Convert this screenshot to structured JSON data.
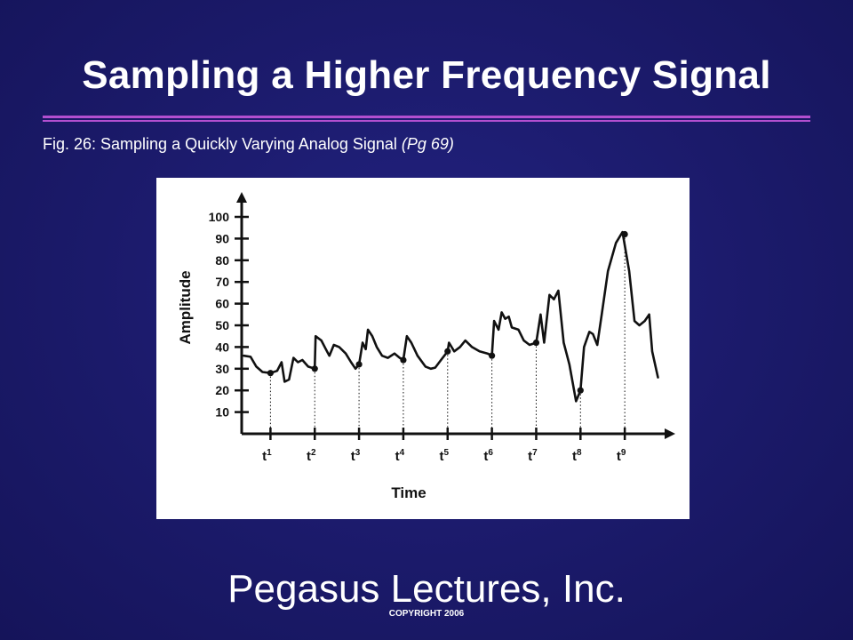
{
  "slide": {
    "title": "Sampling a Higher Frequency Signal",
    "caption_main": "Fig. 26: Sampling a Quickly Varying Analog Signal ",
    "caption_ref": "(Pg 69)",
    "brand": "Pegasus Lectures, Inc.",
    "copyright": "COPYRIGHT 2006"
  },
  "colors": {
    "background": "#1b1a6a",
    "rule": "#b24fd0",
    "text": "#ffffff",
    "plot_ink": "#111111"
  },
  "chart_data": {
    "type": "line",
    "xlabel": "Time",
    "ylabel": "Amplitude",
    "ylim": [
      0,
      100
    ],
    "y_ticks": [
      10,
      20,
      30,
      40,
      50,
      60,
      70,
      80,
      90,
      100
    ],
    "sample_labels": [
      {
        "base": "t",
        "sup": "1"
      },
      {
        "base": "t",
        "sup": "2"
      },
      {
        "base": "t",
        "sup": "3"
      },
      {
        "base": "t",
        "sup": "4"
      },
      {
        "base": "t",
        "sup": "5"
      },
      {
        "base": "t",
        "sup": "6"
      },
      {
        "base": "t",
        "sup": "7"
      },
      {
        "base": "t",
        "sup": "8"
      },
      {
        "base": "t",
        "sup": "9"
      }
    ],
    "sample_times": [
      1,
      2,
      3,
      4,
      5,
      6,
      7,
      8,
      9
    ],
    "xlim": [
      0.35,
      9.9
    ],
    "sample_values": [
      28,
      30,
      32,
      34,
      38,
      36,
      42,
      20,
      92
    ],
    "signal": [
      [
        0.4,
        36
      ],
      [
        0.55,
        35.5
      ],
      [
        0.68,
        31
      ],
      [
        0.82,
        28.5
      ],
      [
        1.0,
        28
      ],
      [
        1.15,
        29
      ],
      [
        1.25,
        33
      ],
      [
        1.32,
        24
      ],
      [
        1.42,
        25
      ],
      [
        1.52,
        35
      ],
      [
        1.62,
        33
      ],
      [
        1.72,
        34
      ],
      [
        1.85,
        31
      ],
      [
        2.0,
        30
      ],
      [
        2.02,
        45
      ],
      [
        2.15,
        43
      ],
      [
        2.25,
        39
      ],
      [
        2.33,
        36
      ],
      [
        2.43,
        41
      ],
      [
        2.55,
        40
      ],
      [
        2.7,
        37
      ],
      [
        2.82,
        33
      ],
      [
        2.92,
        30
      ],
      [
        3.0,
        32
      ],
      [
        3.08,
        42
      ],
      [
        3.15,
        39
      ],
      [
        3.2,
        48
      ],
      [
        3.3,
        45
      ],
      [
        3.4,
        40
      ],
      [
        3.52,
        36
      ],
      [
        3.65,
        35
      ],
      [
        3.8,
        37
      ],
      [
        3.92,
        35
      ],
      [
        4.0,
        34
      ],
      [
        4.08,
        45
      ],
      [
        4.18,
        42
      ],
      [
        4.32,
        36
      ],
      [
        4.5,
        31
      ],
      [
        4.62,
        30
      ],
      [
        4.72,
        30.5
      ],
      [
        4.85,
        34
      ],
      [
        5.0,
        38
      ],
      [
        5.03,
        42
      ],
      [
        5.15,
        38
      ],
      [
        5.28,
        40
      ],
      [
        5.4,
        43
      ],
      [
        5.55,
        40
      ],
      [
        5.72,
        38
      ],
      [
        5.9,
        37
      ],
      [
        6.0,
        36
      ],
      [
        6.05,
        52
      ],
      [
        6.15,
        48
      ],
      [
        6.22,
        56
      ],
      [
        6.3,
        53
      ],
      [
        6.38,
        54
      ],
      [
        6.45,
        49
      ],
      [
        6.6,
        48
      ],
      [
        6.72,
        43
      ],
      [
        6.85,
        41
      ],
      [
        7.0,
        42
      ],
      [
        7.1,
        55
      ],
      [
        7.18,
        42
      ],
      [
        7.3,
        64
      ],
      [
        7.4,
        62
      ],
      [
        7.5,
        66
      ],
      [
        7.62,
        42
      ],
      [
        7.75,
        32
      ],
      [
        7.9,
        15
      ],
      [
        8.0,
        20
      ],
      [
        8.08,
        40
      ],
      [
        8.2,
        47
      ],
      [
        8.28,
        46
      ],
      [
        8.38,
        41
      ],
      [
        8.48,
        55
      ],
      [
        8.62,
        75
      ],
      [
        8.8,
        88
      ],
      [
        8.95,
        93
      ],
      [
        9.1,
        75
      ],
      [
        9.22,
        52
      ],
      [
        9.33,
        50
      ],
      [
        9.45,
        52
      ],
      [
        9.55,
        55
      ],
      [
        9.62,
        38
      ],
      [
        9.75,
        26
      ]
    ]
  }
}
